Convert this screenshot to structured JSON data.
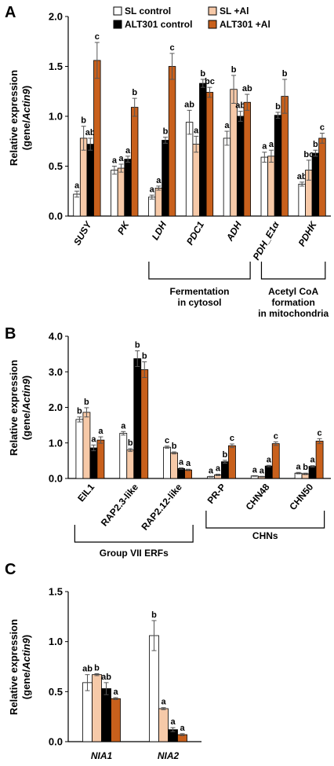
{
  "legend": [
    "SL control",
    "SL +Al",
    "ALT301 control",
    "ALT301 +Al"
  ],
  "colors": {
    "SL control": "#ffffff",
    "SL +Al": "#f6c9a8",
    "ALT301 control": "#000000",
    "ALT301 +Al": "#c8601c"
  },
  "chart_data": [
    {
      "panel": "A",
      "type": "bar",
      "ylabel": "Relative expression (gene/Actin9)",
      "ylim": [
        0,
        2.0
      ],
      "yticks": [
        "0.0",
        "0.5",
        "1.0",
        "1.5",
        "2.0"
      ],
      "categories": [
        "SUSY",
        "PK",
        "LDH",
        "PDC1",
        "ADH",
        "PDH_E1α",
        "PDHK"
      ],
      "series": [
        {
          "name": "SL control",
          "values": [
            0.22,
            0.46,
            0.19,
            0.94,
            0.78,
            0.59,
            0.32
          ],
          "errors": [
            0.03,
            0.04,
            0.02,
            0.12,
            0.07,
            0.05,
            0.02
          ],
          "sig": [
            "a",
            "a",
            "a",
            "ab",
            "a",
            "a",
            "ab"
          ]
        },
        {
          "name": "SL +Al",
          "values": [
            0.78,
            0.48,
            0.28,
            0.72,
            1.27,
            0.6,
            0.46
          ],
          "errors": [
            0.12,
            0.04,
            0.02,
            0.08,
            0.14,
            0.06,
            0.1
          ],
          "sig": [
            "b",
            "a",
            "a",
            "a",
            "b",
            "a",
            "bc"
          ]
        },
        {
          "name": "ALT301 control",
          "values": [
            0.72,
            0.57,
            0.76,
            1.33,
            1.0,
            1.01,
            0.63
          ],
          "errors": [
            0.06,
            0.03,
            0.03,
            0.04,
            0.05,
            0.03,
            0.03
          ],
          "sig": [
            "ab",
            "a",
            "b",
            "b",
            "ab",
            "b",
            "b"
          ]
        },
        {
          "name": "ALT301 +Al",
          "values": [
            1.56,
            1.09,
            1.5,
            1.24,
            1.14,
            1.2,
            0.78
          ],
          "errors": [
            0.18,
            0.09,
            0.13,
            0.05,
            0.08,
            0.17,
            0.05
          ],
          "sig": [
            "c",
            "b",
            "c",
            "bc",
            "ab",
            "b",
            "c"
          ]
        }
      ],
      "groups": [
        {
          "label_lines": [
            "Fermentation",
            "in cytosol"
          ],
          "from": "LDH",
          "to": "ADH"
        },
        {
          "label_lines": [
            "Acetyl CoA",
            "formation",
            "in mitochondria"
          ],
          "from": "PDH_E1α",
          "to": "PDHK"
        }
      ]
    },
    {
      "panel": "B",
      "type": "bar",
      "ylabel": "Relative expression (gene/Actin9)",
      "ylim": [
        0,
        4.0
      ],
      "yticks": [
        "0.0",
        "1.0",
        "2.0",
        "3.0",
        "4.0"
      ],
      "categories": [
        "EIL1",
        "RAP2.3-like",
        "RAP2.12-like",
        "PR-P",
        "CHN48",
        "CHN50"
      ],
      "series": [
        {
          "name": "SL control",
          "values": [
            1.66,
            1.27,
            0.88,
            0.05,
            0.07,
            0.15
          ],
          "errors": [
            0.07,
            0.05,
            0.03,
            0.01,
            0.01,
            0.02
          ],
          "sig": [
            "b",
            "a",
            "c",
            "a",
            "a",
            "a"
          ]
        },
        {
          "name": "SL +Al",
          "values": [
            1.86,
            0.8,
            0.72,
            0.1,
            0.05,
            0.13
          ],
          "errors": [
            0.13,
            0.04,
            0.03,
            0.02,
            0.01,
            0.02
          ],
          "sig": [
            "b",
            "b",
            "b",
            "a",
            "a",
            "b"
          ]
        },
        {
          "name": "ALT301 control",
          "values": [
            0.86,
            3.37,
            0.28,
            0.47,
            0.35,
            0.34
          ],
          "errors": [
            0.08,
            0.22,
            0.02,
            0.04,
            0.02,
            0.02
          ],
          "sig": [
            "a",
            "b",
            "a",
            "b",
            "a",
            "a"
          ]
        },
        {
          "name": "ALT301 +Al",
          "values": [
            1.08,
            3.06,
            0.24,
            0.92,
            0.98,
            1.05
          ],
          "errors": [
            0.09,
            0.22,
            0.02,
            0.05,
            0.05,
            0.07
          ],
          "sig": [
            "a",
            "b",
            "a",
            "c",
            "c",
            "c"
          ]
        }
      ],
      "groups": [
        {
          "label_lines": [
            "Group VII ERFs"
          ],
          "from": "EIL1",
          "to": "RAP2.12-like"
        },
        {
          "label_lines": [
            "CHNs"
          ],
          "from": "PR-P",
          "to": "CHN50"
        }
      ]
    },
    {
      "panel": "C",
      "type": "bar",
      "ylabel": "Relative expression (gene/Actin9)",
      "ylim": [
        0,
        1.5
      ],
      "yticks": [
        "0.0",
        "0.5",
        "1.0",
        "1.5"
      ],
      "categories": [
        "NIA1",
        "NIA2"
      ],
      "series": [
        {
          "name": "SL control",
          "values": [
            0.59,
            1.06
          ],
          "errors": [
            0.08,
            0.15
          ],
          "sig": [
            "ab",
            "b"
          ]
        },
        {
          "name": "SL +Al",
          "values": [
            0.67,
            0.33
          ],
          "errors": [
            0.01,
            0.01
          ],
          "sig": [
            "b",
            "a"
          ]
        },
        {
          "name": "ALT301 control",
          "values": [
            0.53,
            0.12
          ],
          "errors": [
            0.06,
            0.02
          ],
          "sig": [
            "ab",
            "a"
          ]
        },
        {
          "name": "ALT301 +Al",
          "values": [
            0.43,
            0.07
          ],
          "errors": [
            0.01,
            0.01
          ],
          "sig": [
            "a",
            "a"
          ]
        }
      ]
    }
  ]
}
